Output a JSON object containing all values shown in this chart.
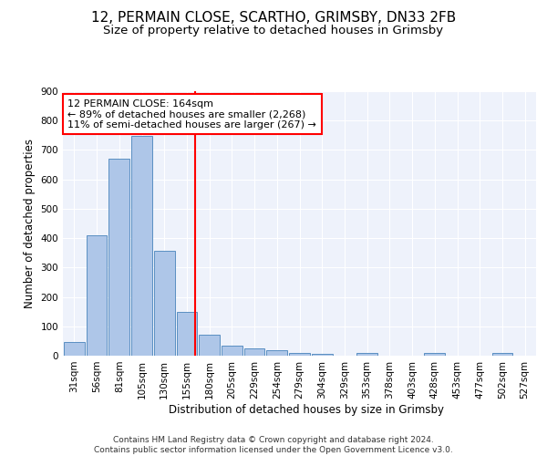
{
  "title1": "12, PERMAIN CLOSE, SCARTHO, GRIMSBY, DN33 2FB",
  "title2": "Size of property relative to detached houses in Grimsby",
  "xlabel": "Distribution of detached houses by size in Grimsby",
  "ylabel": "Number of detached properties",
  "footnote": "Contains HM Land Registry data © Crown copyright and database right 2024.\nContains public sector information licensed under the Open Government Licence v3.0.",
  "bar_labels": [
    "31sqm",
    "56sqm",
    "81sqm",
    "105sqm",
    "130sqm",
    "155sqm",
    "180sqm",
    "205sqm",
    "229sqm",
    "254sqm",
    "279sqm",
    "304sqm",
    "329sqm",
    "353sqm",
    "378sqm",
    "403sqm",
    "428sqm",
    "453sqm",
    "477sqm",
    "502sqm",
    "527sqm"
  ],
  "bar_values": [
    48,
    410,
    670,
    748,
    357,
    150,
    70,
    35,
    25,
    18,
    8,
    5,
    0,
    8,
    0,
    0,
    8,
    0,
    0,
    8,
    0
  ],
  "bar_color": "#aec6e8",
  "bar_edge_color": "#5a8fc2",
  "vline_x": 5.36,
  "vline_color": "red",
  "annotation_text": "12 PERMAIN CLOSE: 164sqm\n← 89% of detached houses are smaller (2,268)\n11% of semi-detached houses are larger (267) →",
  "annotation_box_color": "white",
  "annotation_box_edge_color": "red",
  "ylim": [
    0,
    900
  ],
  "yticks": [
    0,
    100,
    200,
    300,
    400,
    500,
    600,
    700,
    800,
    900
  ],
  "bg_color": "#eef2fb",
  "grid_color": "white",
  "title1_fontsize": 11,
  "title2_fontsize": 9.5,
  "axis_label_fontsize": 8.5,
  "tick_fontsize": 7.5,
  "annotation_fontsize": 8,
  "footnote_fontsize": 6.5
}
